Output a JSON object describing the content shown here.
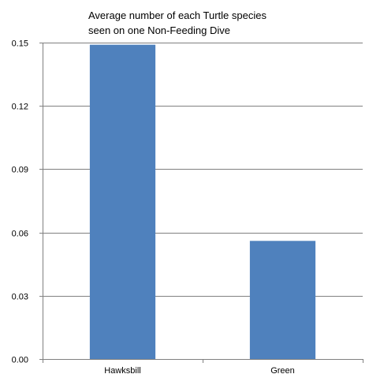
{
  "chart_data": {
    "type": "bar",
    "title": [
      "Average number of  each Turtle species",
      "seen on one Non-Feeding Dive"
    ],
    "xlabel": "",
    "ylabel": "",
    "categories": [
      "Hawksbill",
      "Green"
    ],
    "values": [
      0.149,
      0.056
    ],
    "ylim": [
      0,
      0.15
    ],
    "yticks": [
      "0.00",
      "0.03",
      "0.06",
      "0.09",
      "0.12",
      "0.15"
    ],
    "grid": "horizontal",
    "bar_color": "#4F81BD",
    "legend": "none"
  }
}
